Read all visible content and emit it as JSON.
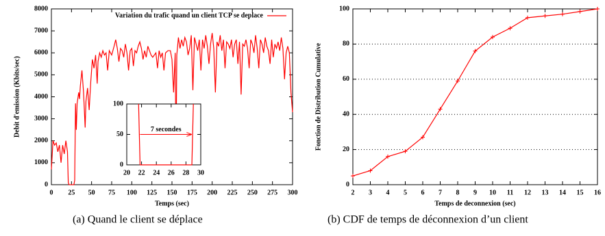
{
  "chart_data": [
    {
      "type": "line",
      "caption": "(a) Quand le client se déplace",
      "xlabel": "Temps (sec)",
      "ylabel": "Debit d'emission (Kbits/sec)",
      "xlim": [
        0,
        300
      ],
      "ylim": [
        0,
        8000
      ],
      "xticks": [
        0,
        25,
        50,
        75,
        100,
        125,
        150,
        175,
        200,
        225,
        250,
        275,
        300
      ],
      "yticks": [
        0,
        1000,
        2000,
        3000,
        4000,
        5000,
        6000,
        7000,
        8000
      ],
      "grid": false,
      "legend": "top-right",
      "markers": false,
      "series": [
        {
          "name": "Variation du trafic quand un client TCP se deplace",
          "color": "#ff0000",
          "x": [
            0,
            2,
            4,
            6,
            8,
            10,
            12,
            14,
            16,
            18,
            20,
            21,
            22,
            24,
            26,
            28,
            29,
            30,
            31,
            32,
            34,
            35,
            36,
            38,
            40,
            42,
            43,
            45,
            47,
            49,
            51,
            53,
            55,
            57,
            58,
            60,
            62,
            64,
            66,
            68,
            70,
            72,
            75,
            78,
            80,
            82,
            84,
            86,
            88,
            90,
            92,
            94,
            96,
            98,
            100,
            102,
            104,
            106,
            108,
            110,
            112,
            114,
            116,
            118,
            120,
            122,
            124,
            126,
            128,
            130,
            132,
            134,
            136,
            138,
            140,
            142,
            145,
            148,
            150,
            152,
            154,
            155,
            156,
            158,
            160,
            162,
            164,
            166,
            168,
            170,
            172,
            174,
            176,
            178,
            180,
            182,
            184,
            186,
            188,
            190,
            192,
            194,
            196,
            198,
            200,
            202,
            204,
            206,
            208,
            210,
            212,
            214,
            216,
            218,
            220,
            222,
            224,
            226,
            228,
            230,
            232,
            234,
            236,
            238,
            240,
            242,
            244,
            246,
            248,
            250,
            252,
            254,
            256,
            258,
            260,
            262,
            264,
            266,
            268,
            270,
            272,
            274,
            276,
            278,
            280,
            282,
            284,
            286,
            288,
            290,
            292,
            294,
            296,
            298,
            300
          ],
          "values": [
            700,
            2000,
            1800,
            1900,
            1500,
            1800,
            1000,
            1800,
            1400,
            2000,
            1500,
            100,
            0,
            0,
            0,
            0,
            200,
            3700,
            2500,
            3700,
            4200,
            3900,
            4500,
            5200,
            4200,
            2600,
            3800,
            4400,
            3400,
            4700,
            5700,
            5300,
            5900,
            4600,
            5600,
            6000,
            5800,
            6100,
            5900,
            6000,
            5200,
            6100,
            5900,
            6300,
            6600,
            6200,
            5600,
            6200,
            6100,
            5800,
            6400,
            6000,
            5200,
            6100,
            6200,
            5400,
            6100,
            6000,
            6300,
            6500,
            6200,
            5700,
            6100,
            5800,
            6300,
            6100,
            5900,
            5800,
            5900,
            6000,
            5300,
            6100,
            5800,
            6000,
            5200,
            6000,
            6100,
            6100,
            5700,
            4200,
            6000,
            900,
            5900,
            6700,
            6200,
            6600,
            6300,
            6700,
            6500,
            5900,
            6200,
            6800,
            4300,
            6700,
            6400,
            6100,
            6600,
            5200,
            6600,
            6200,
            6800,
            6300,
            5500,
            6400,
            6900,
            6200,
            4200,
            6500,
            6300,
            6800,
            6100,
            6600,
            5300,
            6500,
            6400,
            6200,
            6600,
            5800,
            6400,
            6600,
            5500,
            6500,
            4100,
            6400,
            6300,
            6600,
            6200,
            5300,
            6600,
            6400,
            6000,
            6800,
            6200,
            5300,
            6600,
            6400,
            6000,
            6700,
            6300,
            6100,
            5500,
            6600,
            5800,
            6400,
            6200,
            6500,
            6100,
            6700,
            6200,
            4800,
            6000,
            6300,
            6000,
            4200,
            3300
          ]
        }
      ],
      "inset": {
        "type": "line",
        "xlim": [
          20,
          30
        ],
        "ylim": [
          0,
          100
        ],
        "xticks": [
          20,
          22,
          24,
          26,
          28,
          30
        ],
        "yticks": [
          0,
          50,
          100
        ],
        "series": [
          {
            "color": "#ff0000",
            "x": [
              21.6,
              21.8,
              28.8,
              29.0
            ],
            "values": [
              100,
              0,
              0,
              100
            ]
          }
        ],
        "annotation": {
          "text": "7 secondes",
          "color": "#0000ff",
          "x": [
            21.8,
            28.8
          ],
          "y": 50
        }
      }
    },
    {
      "type": "line",
      "caption": "(b) CDF de temps de déconnexion d’un client",
      "xlabel": "Temps de deconnexion (sec)",
      "ylabel": "Fonction de Distribution Cumulative",
      "xlim": [
        2,
        16
      ],
      "ylim": [
        0,
        100
      ],
      "xticks": [
        2,
        3,
        4,
        5,
        6,
        7,
        8,
        9,
        10,
        11,
        12,
        13,
        14,
        15,
        16
      ],
      "yticks": [
        0,
        20,
        40,
        60,
        80,
        100
      ],
      "grid": true,
      "markers": true,
      "series": [
        {
          "color": "#ff0000",
          "x": [
            2,
            3,
            4,
            5,
            6,
            7,
            8,
            9,
            10,
            11,
            12,
            13,
            14,
            15,
            16
          ],
          "values": [
            5,
            8,
            16,
            19,
            27,
            43,
            59,
            76,
            84,
            89,
            95,
            96,
            97,
            98.5,
            100
          ]
        }
      ]
    }
  ]
}
